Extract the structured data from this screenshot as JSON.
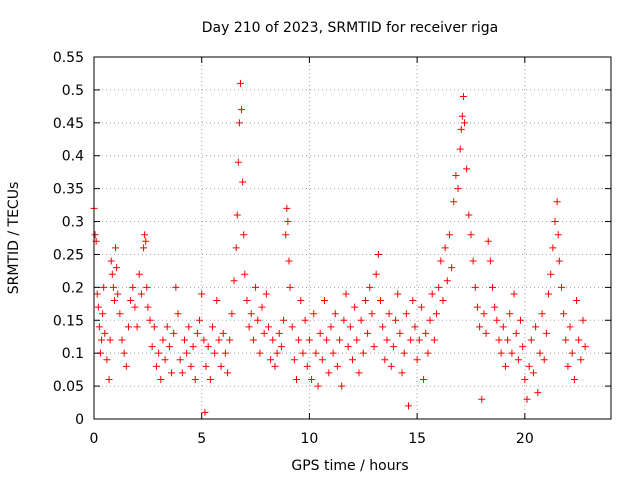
{
  "chart_data": {
    "type": "scatter",
    "title": "Day 210 of 2023, SRMTID for receiver riga",
    "xlabel": "GPS time / hours",
    "ylabel": "SRMTID / TECUs",
    "xlim": [
      0,
      24
    ],
    "ylim": [
      0,
      0.55
    ],
    "xticks": [
      0,
      5,
      10,
      15,
      20
    ],
    "xtick_labels": [
      "0",
      "5",
      "10",
      "15",
      "20"
    ],
    "yticks": [
      0,
      0.05,
      0.1,
      0.15,
      0.2,
      0.25,
      0.3,
      0.35,
      0.4,
      0.45,
      0.5,
      0.55
    ],
    "ytick_labels": [
      "0",
      "0.05",
      "0.1",
      "0.15",
      "0.2",
      "0.25",
      "0.3",
      "0.35",
      "0.4",
      "0.45",
      "0.5",
      "0.55"
    ],
    "grid": true,
    "marker": "plus",
    "color": "#ff0000",
    "series": [
      {
        "name": "SRMTID riga",
        "points": [
          [
            0.0,
            0.32
          ],
          [
            0.05,
            0.28
          ],
          [
            0.1,
            0.27
          ],
          [
            0.15,
            0.19
          ],
          [
            0.2,
            0.17
          ],
          [
            0.25,
            0.14
          ],
          [
            0.3,
            0.1
          ],
          [
            0.35,
            0.12
          ],
          [
            0.4,
            0.16
          ],
          [
            0.45,
            0.2
          ],
          [
            0.5,
            0.13
          ],
          [
            0.6,
            0.09
          ],
          [
            0.7,
            0.06
          ],
          [
            0.75,
            0.12
          ],
          [
            0.8,
            0.24
          ],
          [
            0.85,
            0.22
          ],
          [
            0.9,
            0.2
          ],
          [
            0.95,
            0.18
          ],
          [
            1.0,
            0.26
          ],
          [
            1.05,
            0.23
          ],
          [
            1.1,
            0.19
          ],
          [
            1.2,
            0.16
          ],
          [
            1.3,
            0.12
          ],
          [
            1.4,
            0.1
          ],
          [
            1.5,
            0.08
          ],
          [
            1.6,
            0.14
          ],
          [
            1.7,
            0.18
          ],
          [
            1.8,
            0.2
          ],
          [
            1.9,
            0.17
          ],
          [
            2.0,
            0.14
          ],
          [
            2.1,
            0.22
          ],
          [
            2.2,
            0.19
          ],
          [
            2.3,
            0.26
          ],
          [
            2.35,
            0.28
          ],
          [
            2.4,
            0.27
          ],
          [
            2.45,
            0.2
          ],
          [
            2.5,
            0.17
          ],
          [
            2.6,
            0.15
          ],
          [
            2.7,
            0.11
          ],
          [
            2.8,
            0.14
          ],
          [
            2.9,
            0.08
          ],
          [
            3.0,
            0.1
          ],
          [
            3.1,
            0.06
          ],
          [
            3.2,
            0.12
          ],
          [
            3.3,
            0.09
          ],
          [
            3.4,
            0.14
          ],
          [
            3.5,
            0.11
          ],
          [
            3.6,
            0.07
          ],
          [
            3.7,
            0.13
          ],
          [
            3.8,
            0.2
          ],
          [
            3.9,
            0.16
          ],
          [
            4.0,
            0.09
          ],
          [
            4.1,
            0.07
          ],
          [
            4.2,
            0.12
          ],
          [
            4.3,
            0.1
          ],
          [
            4.4,
            0.14
          ],
          [
            4.5,
            0.08
          ],
          [
            4.6,
            0.11
          ],
          [
            4.7,
            0.06
          ],
          [
            4.8,
            0.13
          ],
          [
            4.9,
            0.15
          ],
          [
            5.0,
            0.19
          ],
          [
            5.1,
            0.12
          ],
          [
            5.15,
            0.01
          ],
          [
            5.2,
            0.08
          ],
          [
            5.3,
            0.11
          ],
          [
            5.4,
            0.06
          ],
          [
            5.5,
            0.14
          ],
          [
            5.6,
            0.1
          ],
          [
            5.7,
            0.18
          ],
          [
            5.8,
            0.12
          ],
          [
            5.9,
            0.08
          ],
          [
            6.0,
            0.13
          ],
          [
            6.1,
            0.1
          ],
          [
            6.2,
            0.07
          ],
          [
            6.3,
            0.12
          ],
          [
            6.4,
            0.16
          ],
          [
            6.5,
            0.21
          ],
          [
            6.6,
            0.26
          ],
          [
            6.65,
            0.31
          ],
          [
            6.7,
            0.39
          ],
          [
            6.75,
            0.45
          ],
          [
            6.8,
            0.51
          ],
          [
            6.85,
            0.47
          ],
          [
            6.9,
            0.36
          ],
          [
            6.95,
            0.28
          ],
          [
            7.0,
            0.22
          ],
          [
            7.1,
            0.18
          ],
          [
            7.2,
            0.14
          ],
          [
            7.3,
            0.16
          ],
          [
            7.4,
            0.12
          ],
          [
            7.5,
            0.2
          ],
          [
            7.6,
            0.15
          ],
          [
            7.7,
            0.1
          ],
          [
            7.8,
            0.17
          ],
          [
            7.9,
            0.13
          ],
          [
            8.0,
            0.19
          ],
          [
            8.1,
            0.14
          ],
          [
            8.2,
            0.09
          ],
          [
            8.3,
            0.12
          ],
          [
            8.4,
            0.08
          ],
          [
            8.5,
            0.1
          ],
          [
            8.6,
            0.13
          ],
          [
            8.7,
            0.11
          ],
          [
            8.8,
            0.15
          ],
          [
            8.9,
            0.28
          ],
          [
            8.95,
            0.32
          ],
          [
            9.0,
            0.3
          ],
          [
            9.05,
            0.24
          ],
          [
            9.1,
            0.2
          ],
          [
            9.2,
            0.14
          ],
          [
            9.3,
            0.09
          ],
          [
            9.4,
            0.06
          ],
          [
            9.5,
            0.12
          ],
          [
            9.6,
            0.18
          ],
          [
            9.7,
            0.1
          ],
          [
            9.8,
            0.15
          ],
          [
            9.9,
            0.08
          ],
          [
            10.0,
            0.12
          ],
          [
            10.1,
            0.06
          ],
          [
            10.2,
            0.16
          ],
          [
            10.3,
            0.1
          ],
          [
            10.4,
            0.05
          ],
          [
            10.5,
            0.13
          ],
          [
            10.6,
            0.09
          ],
          [
            10.7,
            0.18
          ],
          [
            10.8,
            0.12
          ],
          [
            10.9,
            0.07
          ],
          [
            11.0,
            0.14
          ],
          [
            11.1,
            0.1
          ],
          [
            11.2,
            0.16
          ],
          [
            11.3,
            0.08
          ],
          [
            11.4,
            0.12
          ],
          [
            11.5,
            0.05
          ],
          [
            11.6,
            0.15
          ],
          [
            11.7,
            0.19
          ],
          [
            11.8,
            0.11
          ],
          [
            11.9,
            0.14
          ],
          [
            12.0,
            0.09
          ],
          [
            12.1,
            0.17
          ],
          [
            12.2,
            0.12
          ],
          [
            12.3,
            0.07
          ],
          [
            12.4,
            0.15
          ],
          [
            12.5,
            0.1
          ],
          [
            12.6,
            0.18
          ],
          [
            12.7,
            0.13
          ],
          [
            12.8,
            0.2
          ],
          [
            12.9,
            0.16
          ],
          [
            13.0,
            0.11
          ],
          [
            13.1,
            0.22
          ],
          [
            13.2,
            0.25
          ],
          [
            13.3,
            0.18
          ],
          [
            13.4,
            0.14
          ],
          [
            13.5,
            0.09
          ],
          [
            13.6,
            0.12
          ],
          [
            13.7,
            0.16
          ],
          [
            13.8,
            0.08
          ],
          [
            13.9,
            0.11
          ],
          [
            14.0,
            0.15
          ],
          [
            14.1,
            0.19
          ],
          [
            14.2,
            0.13
          ],
          [
            14.3,
            0.07
          ],
          [
            14.4,
            0.1
          ],
          [
            14.5,
            0.16
          ],
          [
            14.6,
            0.02
          ],
          [
            14.7,
            0.12
          ],
          [
            14.8,
            0.18
          ],
          [
            14.9,
            0.14
          ],
          [
            15.0,
            0.09
          ],
          [
            15.1,
            0.12
          ],
          [
            15.2,
            0.17
          ],
          [
            15.3,
            0.06
          ],
          [
            15.4,
            0.13
          ],
          [
            15.5,
            0.1
          ],
          [
            15.6,
            0.15
          ],
          [
            15.7,
            0.19
          ],
          [
            15.8,
            0.12
          ],
          [
            15.9,
            0.16
          ],
          [
            16.0,
            0.2
          ],
          [
            16.1,
            0.24
          ],
          [
            16.2,
            0.18
          ],
          [
            16.3,
            0.26
          ],
          [
            16.4,
            0.21
          ],
          [
            16.5,
            0.28
          ],
          [
            16.6,
            0.23
          ],
          [
            16.7,
            0.33
          ],
          [
            16.8,
            0.37
          ],
          [
            16.9,
            0.35
          ],
          [
            17.0,
            0.41
          ],
          [
            17.05,
            0.44
          ],
          [
            17.1,
            0.46
          ],
          [
            17.15,
            0.49
          ],
          [
            17.2,
            0.45
          ],
          [
            17.3,
            0.38
          ],
          [
            17.4,
            0.31
          ],
          [
            17.5,
            0.28
          ],
          [
            17.6,
            0.24
          ],
          [
            17.7,
            0.2
          ],
          [
            17.8,
            0.17
          ],
          [
            17.9,
            0.14
          ],
          [
            18.0,
            0.03
          ],
          [
            18.1,
            0.16
          ],
          [
            18.2,
            0.13
          ],
          [
            18.3,
            0.27
          ],
          [
            18.4,
            0.24
          ],
          [
            18.5,
            0.2
          ],
          [
            18.6,
            0.17
          ],
          [
            18.7,
            0.15
          ],
          [
            18.8,
            0.12
          ],
          [
            18.9,
            0.1
          ],
          [
            19.0,
            0.14
          ],
          [
            19.1,
            0.08
          ],
          [
            19.2,
            0.12
          ],
          [
            19.3,
            0.16
          ],
          [
            19.4,
            0.1
          ],
          [
            19.5,
            0.19
          ],
          [
            19.6,
            0.13
          ],
          [
            19.7,
            0.09
          ],
          [
            19.8,
            0.15
          ],
          [
            19.9,
            0.11
          ],
          [
            20.0,
            0.06
          ],
          [
            20.1,
            0.03
          ],
          [
            20.2,
            0.08
          ],
          [
            20.3,
            0.12
          ],
          [
            20.4,
            0.07
          ],
          [
            20.5,
            0.14
          ],
          [
            20.6,
            0.04
          ],
          [
            20.7,
            0.1
          ],
          [
            20.8,
            0.16
          ],
          [
            20.9,
            0.09
          ],
          [
            21.0,
            0.13
          ],
          [
            21.1,
            0.19
          ],
          [
            21.2,
            0.22
          ],
          [
            21.3,
            0.26
          ],
          [
            21.4,
            0.3
          ],
          [
            21.5,
            0.33
          ],
          [
            21.55,
            0.28
          ],
          [
            21.6,
            0.24
          ],
          [
            21.7,
            0.2
          ],
          [
            21.8,
            0.16
          ],
          [
            21.9,
            0.12
          ],
          [
            22.0,
            0.08
          ],
          [
            22.1,
            0.14
          ],
          [
            22.2,
            0.1
          ],
          [
            22.3,
            0.06
          ],
          [
            22.4,
            0.18
          ],
          [
            22.5,
            0.12
          ],
          [
            22.6,
            0.09
          ],
          [
            22.7,
            0.15
          ],
          [
            22.8,
            0.11
          ]
        ]
      }
    ]
  }
}
